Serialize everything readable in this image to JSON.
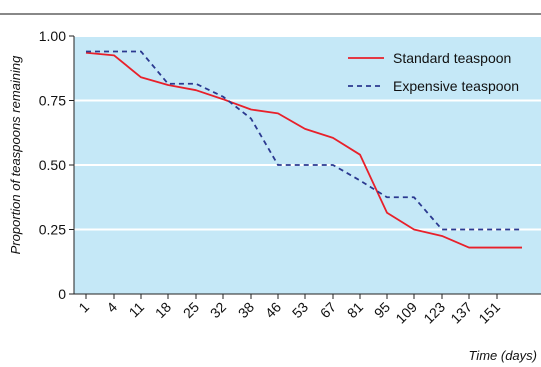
{
  "chart_data": {
    "type": "line",
    "title": "",
    "xlabel": "Time (days)",
    "ylabel": "Proportion of teaspoons remaining",
    "ylim": [
      0,
      1
    ],
    "yticks": [
      {
        "value": 0,
        "label": "0"
      },
      {
        "value": 0.25,
        "label": "0.25"
      },
      {
        "value": 0.5,
        "label": "0.50"
      },
      {
        "value": 0.75,
        "label": "0.75"
      },
      {
        "value": 1.0,
        "label": "1.00"
      }
    ],
    "x": [
      "1",
      "4",
      "11",
      "18",
      "25",
      "32",
      "38",
      "46",
      "53",
      "67",
      "81",
      "95",
      "109",
      "123",
      "137",
      "151"
    ],
    "grid": "horizontal",
    "legend_position": "top-right",
    "series": [
      {
        "name": "Standard teaspoon",
        "color": "#e8202a",
        "style": "solid",
        "points": [
          [
            1,
            0.935
          ],
          [
            4,
            0.925
          ],
          [
            11,
            0.84
          ],
          [
            18,
            0.81
          ],
          [
            25,
            0.79
          ],
          [
            32,
            0.755
          ],
          [
            38,
            0.715
          ],
          [
            46,
            0.7
          ],
          [
            53,
            0.64
          ],
          [
            67,
            0.605
          ],
          [
            81,
            0.54
          ],
          [
            95,
            0.315
          ],
          [
            109,
            0.25
          ],
          [
            123,
            0.225
          ],
          [
            137,
            0.18
          ],
          [
            151,
            0.18
          ],
          [
            159,
            0.18
          ]
        ]
      },
      {
        "name": "Expensive teaspoon",
        "color": "#2b3990",
        "style": "dashed",
        "points": [
          [
            1,
            0.94
          ],
          [
            4,
            0.94
          ],
          [
            11,
            0.94
          ],
          [
            18,
            0.815
          ],
          [
            25,
            0.815
          ],
          [
            32,
            0.765
          ],
          [
            38,
            0.68
          ],
          [
            46,
            0.5
          ],
          [
            53,
            0.5
          ],
          [
            67,
            0.5
          ],
          [
            81,
            0.44
          ],
          [
            95,
            0.375
          ],
          [
            109,
            0.375
          ],
          [
            123,
            0.25
          ],
          [
            137,
            0.25
          ],
          [
            151,
            0.25
          ],
          [
            159,
            0.25
          ]
        ]
      }
    ]
  },
  "colors": {
    "plot_background": "#c5e8f7",
    "gridline": "#ffffff",
    "axis": "#222222",
    "top_rule": "#111111"
  }
}
